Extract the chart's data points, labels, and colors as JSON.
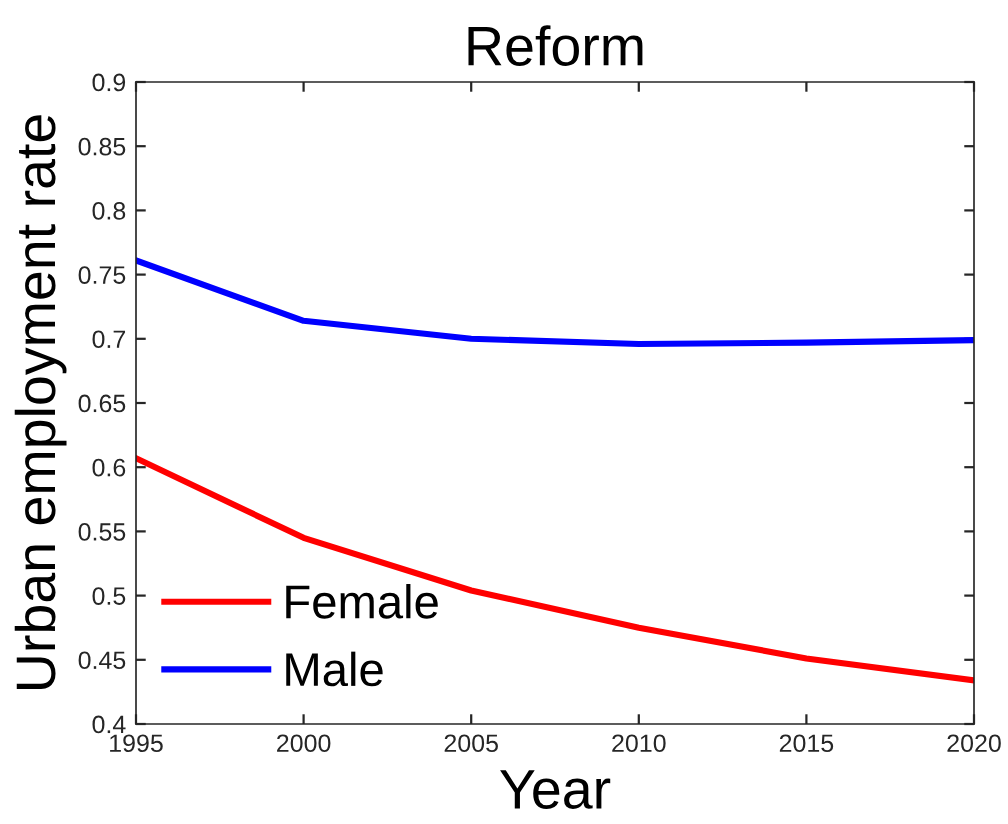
{
  "chart_data": {
    "type": "line",
    "title": "Reform",
    "xlabel": "Year",
    "ylabel": "Urban employment rate",
    "x": [
      1995,
      2000,
      2005,
      2010,
      2015,
      2020
    ],
    "series": [
      {
        "name": "Female",
        "color": "#ff0000",
        "values": [
          0.607,
          0.545,
          0.504,
          0.475,
          0.451,
          0.434
        ]
      },
      {
        "name": "Male",
        "color": "#0000ff",
        "values": [
          0.761,
          0.714,
          0.7,
          0.696,
          0.697,
          0.699
        ]
      }
    ],
    "xlim": [
      1995,
      2020
    ],
    "xticks": [
      1995,
      2000,
      2005,
      2010,
      2015,
      2020
    ],
    "ylim": [
      0.4,
      0.9
    ],
    "yticks": [
      0.4,
      0.45,
      0.5,
      0.55,
      0.6,
      0.65,
      0.7,
      0.75,
      0.8,
      0.85,
      0.9
    ],
    "grid": false,
    "legend": "bottom left",
    "line_style": "solid",
    "marker": "none"
  }
}
